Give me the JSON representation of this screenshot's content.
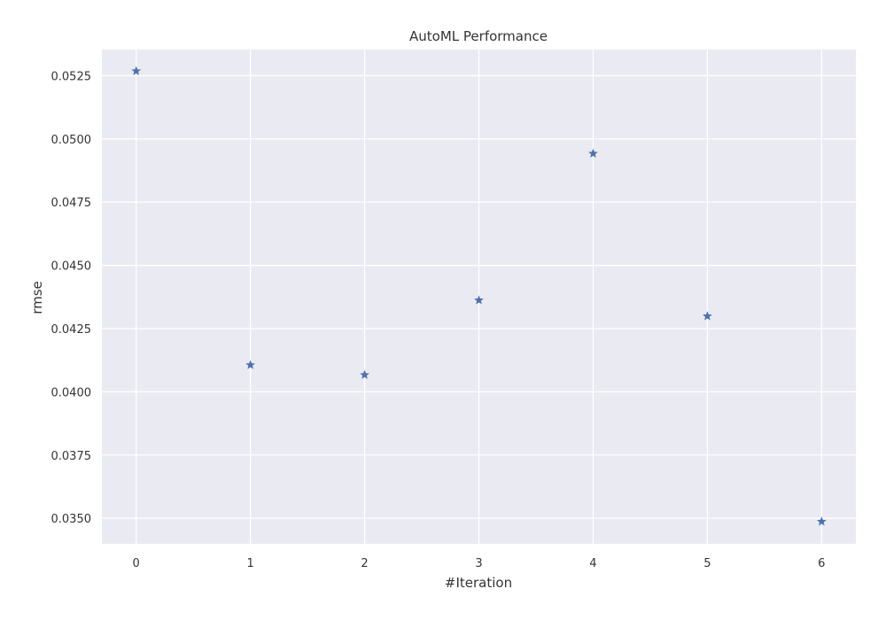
{
  "chart_data": {
    "type": "scatter",
    "title": "AutoML Performance",
    "xlabel": "#Iteration",
    "ylabel": "rmse",
    "x": [
      0,
      1,
      2,
      3,
      4,
      5,
      6
    ],
    "y": [
      0.05268,
      0.04106,
      0.04067,
      0.04362,
      0.04942,
      0.04299,
      0.03487
    ],
    "x_ticks": [
      "0",
      "1",
      "2",
      "3",
      "4",
      "5",
      "6"
    ],
    "y_ticks": [
      "0.0350",
      "0.0375",
      "0.0400",
      "0.0425",
      "0.0450",
      "0.0475",
      "0.0500",
      "0.0525"
    ],
    "xlim": [
      -0.3,
      6.3
    ],
    "ylim": [
      0.03399,
      0.05353
    ],
    "marker": "star",
    "colors": {
      "plot_background": "#eaeaf2",
      "grid": "#ffffff",
      "marker": "#4c72b0"
    }
  }
}
